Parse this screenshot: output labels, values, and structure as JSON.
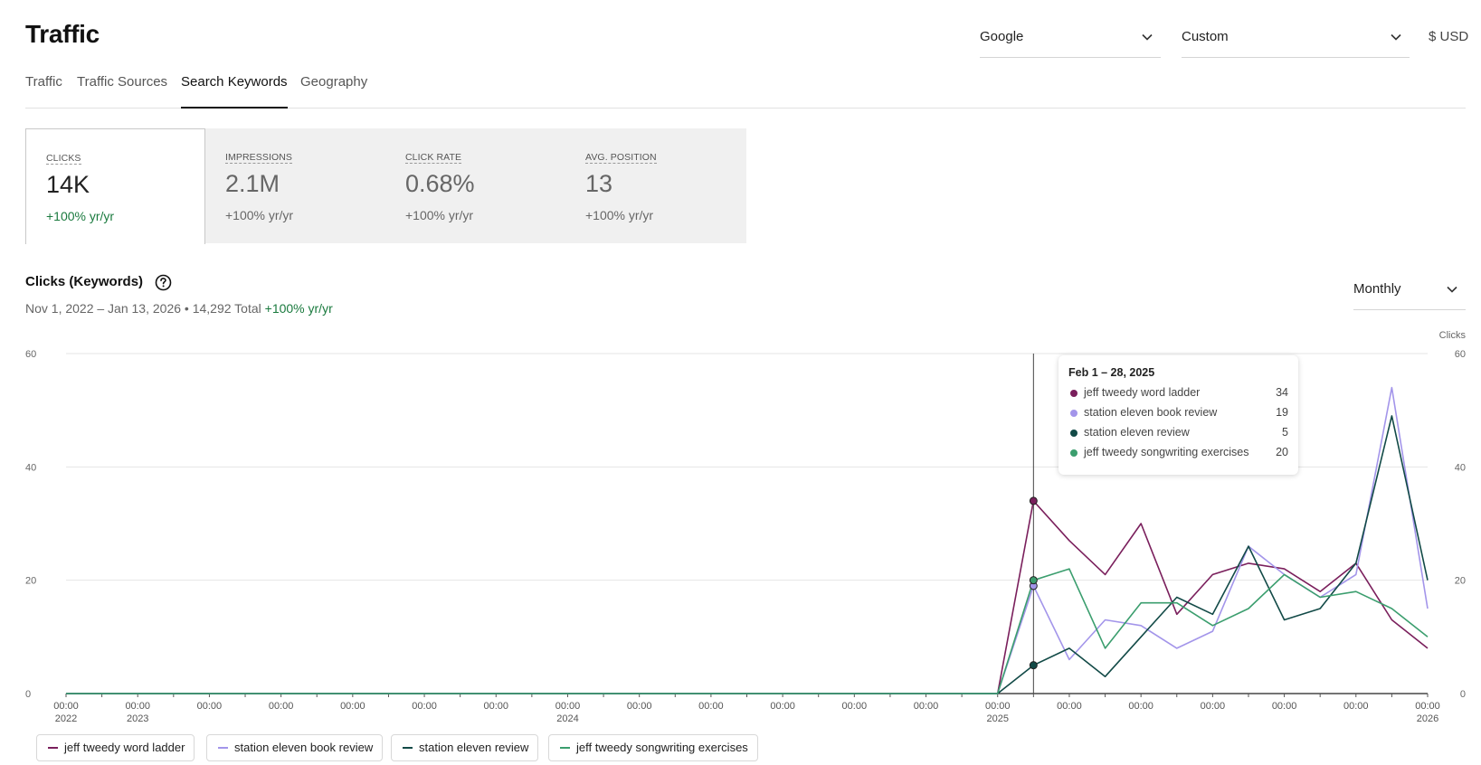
{
  "header": {
    "title": "Traffic",
    "engine": "Google",
    "range": "Custom",
    "currency": "$ USD"
  },
  "tabs": [
    {
      "label": "Traffic",
      "active": false
    },
    {
      "label": "Traffic Sources",
      "active": false
    },
    {
      "label": "Search Keywords",
      "active": true
    },
    {
      "label": "Geography",
      "active": false
    }
  ],
  "metrics": [
    {
      "label": "Clicks",
      "value": "14K",
      "change": "+100% yr/yr",
      "active": true
    },
    {
      "label": "Impressions",
      "value": "2.1M",
      "change": "+100% yr/yr",
      "active": false
    },
    {
      "label": "Click Rate",
      "value": "0.68%",
      "change": "+100% yr/yr",
      "active": false
    },
    {
      "label": "Avg. Position",
      "value": "13",
      "change": "+100% yr/yr",
      "active": false
    }
  ],
  "chart_section": {
    "title": "Clicks (Keywords)",
    "date_range": "Nov 1, 2022 – Jan 13, 2026",
    "bullet": "•",
    "total": "14,292 Total",
    "change": "+100% yr/yr",
    "granularity": "Monthly"
  },
  "tooltip": {
    "title": "Feb 1 – 28, 2025",
    "rows": [
      {
        "name": "jeff tweedy word ladder",
        "value": "34"
      },
      {
        "name": "station eleven book review",
        "value": "19"
      },
      {
        "name": "station eleven review",
        "value": "5"
      },
      {
        "name": "jeff tweedy songwriting exercises",
        "value": "20"
      }
    ]
  },
  "colors": {
    "accent_positive": "#1a7a3e",
    "series": [
      "#7a1f5c",
      "#a395ea",
      "#124a47",
      "#3b9e6e"
    ]
  },
  "chart_data": {
    "type": "line",
    "ylabel_right": "Clicks",
    "ylim": [
      0,
      60
    ],
    "yticks": [
      0,
      20,
      40,
      60
    ],
    "grid": true,
    "legend_position": "bottom-left",
    "x_tick_labels": [
      {
        "t": "00:00",
        "sub": "2022"
      },
      {
        "t": "00:00",
        "sub": "2023"
      },
      {
        "t": "00:00",
        "sub": ""
      },
      {
        "t": "00:00",
        "sub": ""
      },
      {
        "t": "00:00",
        "sub": ""
      },
      {
        "t": "00:00",
        "sub": ""
      },
      {
        "t": "00:00",
        "sub": ""
      },
      {
        "t": "00:00",
        "sub": "2024"
      },
      {
        "t": "00:00",
        "sub": ""
      },
      {
        "t": "00:00",
        "sub": ""
      },
      {
        "t": "00:00",
        "sub": ""
      },
      {
        "t": "00:00",
        "sub": ""
      },
      {
        "t": "00:00",
        "sub": ""
      },
      {
        "t": "00:00",
        "sub": "2025"
      },
      {
        "t": "00:00",
        "sub": ""
      },
      {
        "t": "00:00",
        "sub": ""
      },
      {
        "t": "00:00",
        "sub": ""
      },
      {
        "t": "00:00",
        "sub": ""
      },
      {
        "t": "00:00",
        "sub": ""
      },
      {
        "t": "00:00",
        "sub": "2026"
      }
    ],
    "x": [
      "2022-11",
      "2022-12",
      "2023-01",
      "2023-02",
      "2023-03",
      "2023-04",
      "2023-05",
      "2023-06",
      "2023-07",
      "2023-08",
      "2023-09",
      "2023-10",
      "2023-11",
      "2023-12",
      "2024-01",
      "2024-02",
      "2024-03",
      "2024-04",
      "2024-05",
      "2024-06",
      "2024-07",
      "2024-08",
      "2024-09",
      "2024-10",
      "2024-11",
      "2024-12",
      "2025-01",
      "2025-02",
      "2025-03",
      "2025-04",
      "2025-05",
      "2025-06",
      "2025-07",
      "2025-08",
      "2025-09",
      "2025-10",
      "2025-11",
      "2025-12",
      "2026-01"
    ],
    "highlight_x": "2025-02",
    "series": [
      {
        "name": "jeff tweedy word ladder",
        "values": [
          0,
          0,
          0,
          0,
          0,
          0,
          0,
          0,
          0,
          0,
          0,
          0,
          0,
          0,
          0,
          0,
          0,
          0,
          0,
          0,
          0,
          0,
          0,
          0,
          0,
          0,
          0,
          34,
          27,
          21,
          30,
          14,
          21,
          23,
          22,
          18,
          23,
          13,
          8
        ]
      },
      {
        "name": "station eleven book review",
        "values": [
          0,
          0,
          0,
          0,
          0,
          0,
          0,
          0,
          0,
          0,
          0,
          0,
          0,
          0,
          0,
          0,
          0,
          0,
          0,
          0,
          0,
          0,
          0,
          0,
          0,
          0,
          0,
          19,
          6,
          13,
          12,
          8,
          11,
          26,
          21,
          17,
          21,
          54,
          15
        ]
      },
      {
        "name": "station eleven review",
        "values": [
          0,
          0,
          0,
          0,
          0,
          0,
          0,
          0,
          0,
          0,
          0,
          0,
          0,
          0,
          0,
          0,
          0,
          0,
          0,
          0,
          0,
          0,
          0,
          0,
          0,
          0,
          0,
          5,
          8,
          3,
          10,
          17,
          14,
          26,
          13,
          15,
          23,
          49,
          20
        ]
      },
      {
        "name": "jeff tweedy songwriting exercises",
        "values": [
          0,
          0,
          0,
          0,
          0,
          0,
          0,
          0,
          0,
          0,
          0,
          0,
          0,
          0,
          0,
          0,
          0,
          0,
          0,
          0,
          0,
          0,
          0,
          0,
          0,
          0,
          0,
          20,
          22,
          8,
          16,
          16,
          12,
          15,
          21,
          17,
          18,
          15,
          10
        ]
      }
    ]
  }
}
